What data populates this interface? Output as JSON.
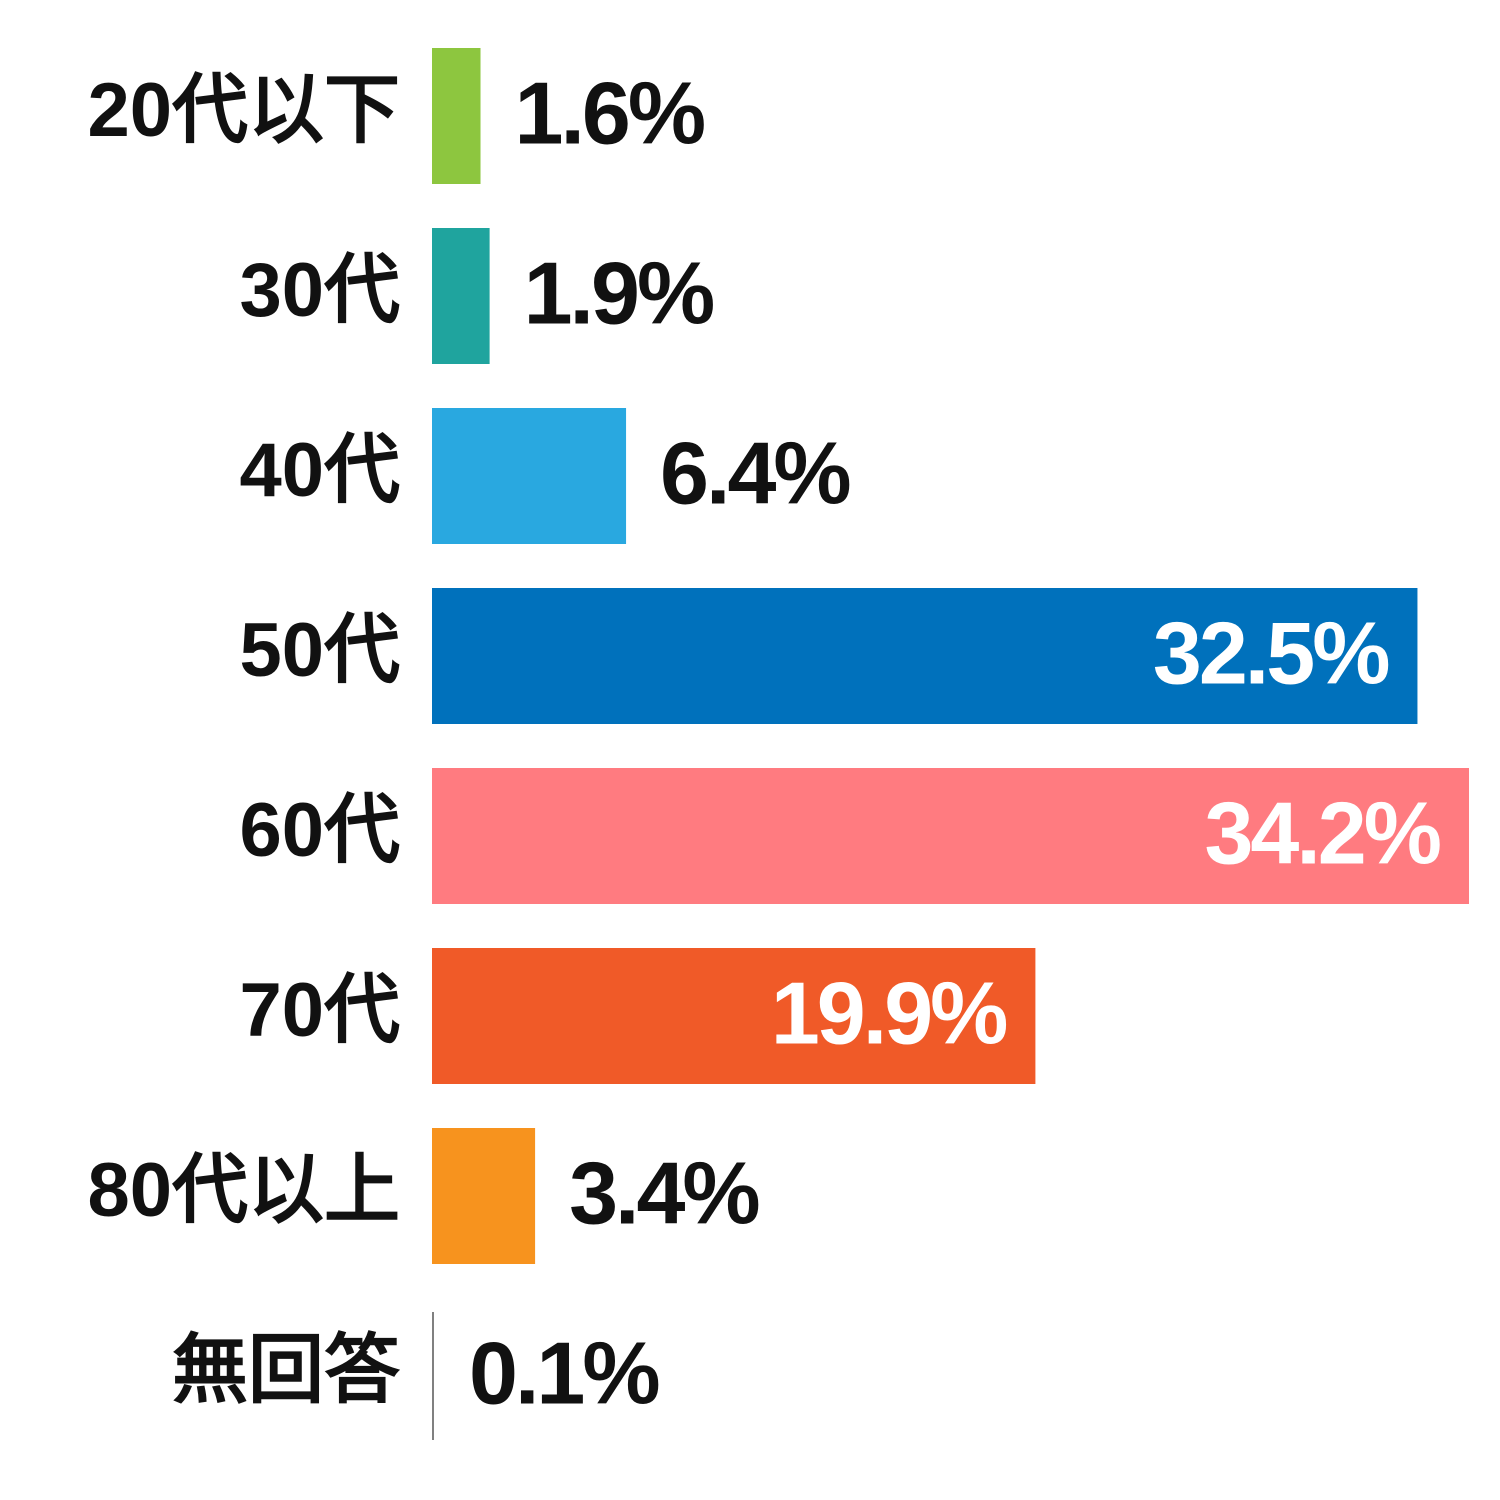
{
  "chart_data": {
    "type": "bar",
    "orientation": "horizontal",
    "categories": [
      "20代以下",
      "30代",
      "40代",
      "50代",
      "60代",
      "70代",
      "80代以上",
      "無回答"
    ],
    "values": [
      1.6,
      1.9,
      6.4,
      32.5,
      34.2,
      19.9,
      3.4,
      0.1
    ],
    "value_labels": [
      "1.6%",
      "1.9%",
      "6.4%",
      "32.5%",
      "34.2%",
      "19.9%",
      "3.4%",
      "0.1%"
    ],
    "colors": [
      "#8dc63f",
      "#1fa49e",
      "#29a8e0",
      "#0071bc",
      "#ff7b80",
      "#f05a28",
      "#f7931e",
      "#808080"
    ]
  }
}
